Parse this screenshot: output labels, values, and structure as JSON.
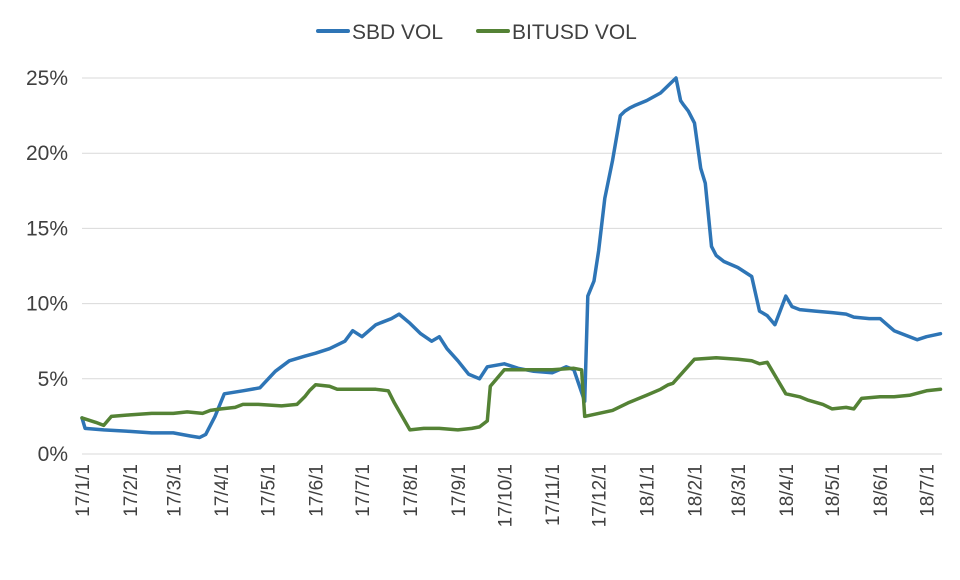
{
  "chart_data": {
    "type": "line",
    "title": "",
    "xlabel": "",
    "ylabel": "",
    "ylim": [
      0,
      25
    ],
    "y_ticks": [
      "0%",
      "5%",
      "10%",
      "15%",
      "20%",
      "25%"
    ],
    "y_tick_values": [
      0,
      5,
      10,
      15,
      20,
      25
    ],
    "x_ticks": [
      "17/1/1",
      "17/2/1",
      "17/3/1",
      "17/4/1",
      "17/5/1",
      "17/6/1",
      "17/7/1",
      "17/8/1",
      "17/9/1",
      "17/10/1",
      "17/11/1",
      "17/12/1",
      "18/1/1",
      "18/2/1",
      "18/3/1",
      "18/4/1",
      "18/5/1",
      "18/6/1",
      "18/7/1"
    ],
    "x_tick_dates": [
      "2017-01-01",
      "2017-02-01",
      "2017-03-01",
      "2017-04-01",
      "2017-05-01",
      "2017-06-01",
      "2017-07-01",
      "2017-08-01",
      "2017-09-01",
      "2017-10-01",
      "2017-11-01",
      "2017-12-01",
      "2018-01-01",
      "2018-02-01",
      "2018-03-01",
      "2018-04-01",
      "2018-05-01",
      "2018-06-01",
      "2018-07-01"
    ],
    "xlim": [
      "2017-01-01",
      "2018-07-11"
    ],
    "grid": true,
    "legend_position": "top",
    "series": [
      {
        "name": "SBD VOL",
        "color": "#2e75b6",
        "x": [
          "2017-01-01",
          "2017-01-03",
          "2017-01-15",
          "2017-02-01",
          "2017-02-15",
          "2017-03-01",
          "2017-03-12",
          "2017-03-18",
          "2017-03-22",
          "2017-03-28",
          "2017-04-03",
          "2017-04-15",
          "2017-04-26",
          "2017-05-06",
          "2017-05-15",
          "2017-05-25",
          "2017-06-01",
          "2017-06-10",
          "2017-06-20",
          "2017-06-25",
          "2017-07-01",
          "2017-07-10",
          "2017-07-20",
          "2017-07-25",
          "2017-08-01",
          "2017-08-08",
          "2017-08-15",
          "2017-08-20",
          "2017-08-25",
          "2017-09-01",
          "2017-09-08",
          "2017-09-15",
          "2017-09-20",
          "2017-10-01",
          "2017-10-10",
          "2017-10-20",
          "2017-11-01",
          "2017-11-10",
          "2017-11-15",
          "2017-11-22",
          "2017-11-24",
          "2017-11-28",
          "2017-12-01",
          "2017-12-05",
          "2017-12-10",
          "2017-12-15",
          "2017-12-18",
          "2017-12-21",
          "2017-12-25",
          "2018-01-01",
          "2018-01-10",
          "2018-01-20",
          "2018-01-23",
          "2018-01-25",
          "2018-01-28",
          "2018-02-01",
          "2018-02-05",
          "2018-02-08",
          "2018-02-12",
          "2018-02-15",
          "2018-02-20",
          "2018-03-01",
          "2018-03-10",
          "2018-03-15",
          "2018-03-20",
          "2018-03-25",
          "2018-04-01",
          "2018-04-05",
          "2018-04-10",
          "2018-04-20",
          "2018-05-01",
          "2018-05-10",
          "2018-05-15",
          "2018-05-25",
          "2018-06-01",
          "2018-06-10",
          "2018-06-15",
          "2018-06-25",
          "2018-07-01",
          "2018-07-10"
        ],
        "values": [
          2.4,
          1.7,
          1.6,
          1.5,
          1.4,
          1.4,
          1.2,
          1.1,
          1.3,
          2.5,
          4.0,
          4.2,
          4.4,
          5.5,
          6.2,
          6.5,
          6.7,
          7.0,
          7.5,
          8.2,
          7.8,
          8.6,
          9.0,
          9.3,
          8.7,
          8.0,
          7.5,
          7.8,
          7.0,
          6.2,
          5.3,
          5.0,
          5.8,
          6.0,
          5.7,
          5.5,
          5.4,
          5.8,
          5.6,
          3.5,
          10.5,
          11.5,
          13.5,
          17.0,
          19.5,
          22.5,
          22.8,
          23.0,
          23.2,
          23.5,
          24.0,
          25.0,
          23.5,
          23.2,
          22.8,
          22.0,
          19.0,
          18.0,
          13.8,
          13.2,
          12.8,
          12.4,
          11.8,
          9.5,
          9.2,
          8.6,
          10.5,
          9.8,
          9.6,
          9.5,
          9.4,
          9.3,
          9.1,
          9.0,
          9.0,
          8.2,
          8.0,
          7.6,
          7.8,
          8.0
        ]
      },
      {
        "name": "BITUSD VOL",
        "color": "#548235",
        "x": [
          "2017-01-01",
          "2017-01-10",
          "2017-01-15",
          "2017-01-20",
          "2017-02-01",
          "2017-02-15",
          "2017-03-01",
          "2017-03-10",
          "2017-03-20",
          "2017-03-25",
          "2017-04-01",
          "2017-04-10",
          "2017-04-15",
          "2017-04-25",
          "2017-05-10",
          "2017-05-20",
          "2017-05-25",
          "2017-05-28",
          "2017-06-01",
          "2017-06-10",
          "2017-06-15",
          "2017-07-01",
          "2017-07-10",
          "2017-07-18",
          "2017-07-22",
          "2017-08-01",
          "2017-08-10",
          "2017-08-20",
          "2017-09-01",
          "2017-09-10",
          "2017-09-15",
          "2017-09-20",
          "2017-09-22",
          "2017-10-01",
          "2017-10-15",
          "2017-11-01",
          "2017-11-15",
          "2017-11-20",
          "2017-11-22",
          "2017-12-01",
          "2017-12-10",
          "2017-12-20",
          "2018-01-01",
          "2018-01-10",
          "2018-01-15",
          "2018-01-18",
          "2018-02-01",
          "2018-02-15",
          "2018-03-01",
          "2018-03-10",
          "2018-03-15",
          "2018-03-20",
          "2018-04-01",
          "2018-04-10",
          "2018-04-15",
          "2018-04-25",
          "2018-05-01",
          "2018-05-10",
          "2018-05-15",
          "2018-05-20",
          "2018-06-01",
          "2018-06-10",
          "2018-06-20",
          "2018-07-01",
          "2018-07-10"
        ],
        "values": [
          2.4,
          2.1,
          1.9,
          2.5,
          2.6,
          2.7,
          2.7,
          2.8,
          2.7,
          2.9,
          3.0,
          3.1,
          3.3,
          3.3,
          3.2,
          3.3,
          3.8,
          4.2,
          4.6,
          4.5,
          4.3,
          4.3,
          4.3,
          4.2,
          3.4,
          1.6,
          1.7,
          1.7,
          1.6,
          1.7,
          1.8,
          2.2,
          4.5,
          5.6,
          5.6,
          5.6,
          5.7,
          5.6,
          2.5,
          2.7,
          2.9,
          3.4,
          3.9,
          4.3,
          4.6,
          4.7,
          6.3,
          6.4,
          6.3,
          6.2,
          6.0,
          6.1,
          4.0,
          3.8,
          3.6,
          3.3,
          3.0,
          3.1,
          3.0,
          3.7,
          3.8,
          3.8,
          3.9,
          4.2,
          4.3
        ]
      }
    ]
  }
}
